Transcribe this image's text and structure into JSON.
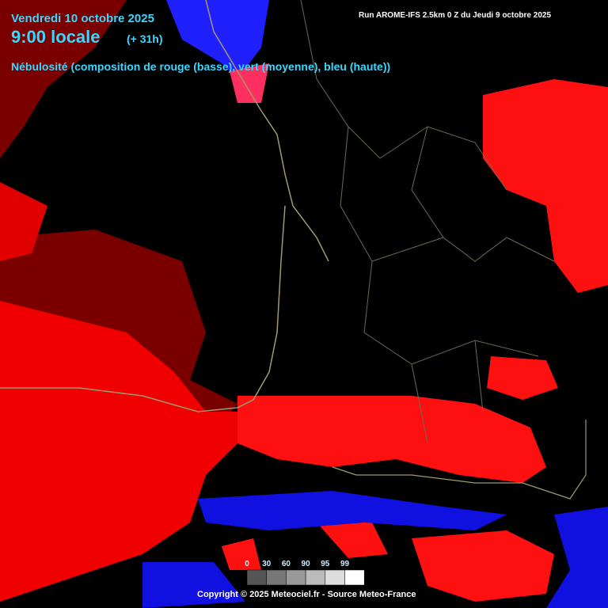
{
  "header": {
    "date": "Vendredi 10 octobre 2025",
    "time": "9:00 locale",
    "lead": "(+ 31h)",
    "run": "Run AROME-IFS 2.5km 0 Z du Jeudi 9 octobre 2025",
    "title": "Nébulosité (composition de rouge (basse), vert (moyenne), bleu (haute))"
  },
  "legend": {
    "labels": [
      0,
      30,
      60,
      90,
      95,
      99
    ]
  },
  "footer": {
    "copyright": "Copyright © 2025 Meteociel.fr - Source Meteo-France"
  }
}
